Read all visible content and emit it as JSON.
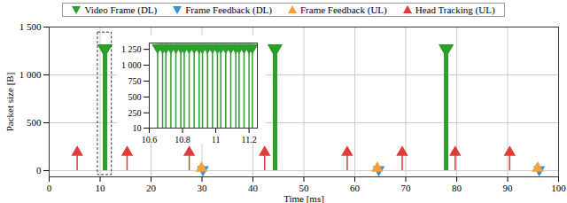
{
  "chart_data": [
    {
      "type": "scatter",
      "x_label": "Time [ms]",
      "y_label": "Packet size [B]",
      "xlim": [
        0,
        100
      ],
      "xticks": [
        0,
        10,
        20,
        30,
        40,
        50,
        60,
        70,
        80,
        90,
        100
      ],
      "ylim": [
        -65,
        1500
      ],
      "yticks": [
        0,
        500,
        {
          "value": 1000,
          "label": "1 000"
        },
        {
          "value": 1500,
          "label": "1 500"
        }
      ],
      "grid": true,
      "legend": "top",
      "series": [
        {
          "name": "Video Frame (DL)",
          "color": "#2ca02c",
          "marker": "triangle-down",
          "x": [
            10.65,
            10.68,
            10.7,
            10.73,
            10.76,
            10.79,
            10.81,
            10.84,
            10.87,
            10.9,
            10.92,
            10.95,
            10.98,
            11.01,
            11.03,
            11.06,
            11.09,
            11.12,
            11.14,
            11.17,
            11.2,
            11.22,
            44.05,
            44.08,
            44.11,
            44.14,
            44.17,
            44.2,
            44.23,
            44.26,
            44.29,
            44.32,
            44.35,
            44.38,
            44.41,
            44.44,
            44.47,
            44.5,
            44.53,
            44.56,
            44.59,
            44.62,
            77.65,
            77.68,
            77.71,
            77.74,
            77.77,
            77.8,
            77.83,
            77.86,
            77.89,
            77.92,
            77.95,
            77.98,
            78.01,
            78.04,
            78.07,
            78.1,
            78.13,
            78.16,
            78.19,
            78.22
          ],
          "values": [
            1280,
            1280,
            1280,
            1280,
            1280,
            1280,
            1280,
            1280,
            1280,
            1280,
            1280,
            1280,
            1280,
            1280,
            1280,
            1280,
            1280,
            1280,
            1280,
            1280,
            1280,
            1280,
            1280,
            1280,
            1280,
            1280,
            1280,
            1280,
            1280,
            1280,
            1280,
            1280,
            1280,
            1280,
            1280,
            1280,
            1280,
            1280,
            1280,
            1280,
            1280,
            1280,
            1280,
            1280,
            1280,
            1280,
            1280,
            1280,
            1280,
            1280,
            1280,
            1280,
            1280,
            1280,
            1280,
            1280,
            1280,
            1280,
            1280,
            1280,
            1280,
            1280
          ]
        },
        {
          "name": "Frame Feedback (DL)",
          "color": "#3a8fd6",
          "marker": "triangle-down",
          "x": [
            30.2,
            64.7,
            96.2
          ],
          "values": [
            10,
            10,
            10
          ]
        },
        {
          "name": "Frame Feedback (UL)",
          "color": "#f5a13a",
          "marker": "triangle-up",
          "x": [
            29.9,
            64.4,
            95.9
          ],
          "values": [
            25,
            25,
            25
          ]
        },
        {
          "name": "Head Tracking (UL)",
          "color": "#e03a3a",
          "marker": "triangle-up",
          "x": [
            5.5,
            15.3,
            27.5,
            42.3,
            58.5,
            69.3,
            79.7,
            90.4
          ],
          "values": [
            190,
            190,
            190,
            190,
            190,
            190,
            190,
            190
          ]
        }
      ]
    },
    {
      "type": "scatter",
      "xlim": [
        10.6,
        11.25
      ],
      "xticks": [
        10.6,
        10.8,
        11,
        11.2
      ],
      "ylim": [
        10,
        1350
      ],
      "yticks": [
        10,
        250,
        500,
        750,
        {
          "value": 1000,
          "label": "1 000"
        },
        {
          "value": 1250,
          "label": "1 250"
        }
      ],
      "grid": false,
      "series": [
        {
          "color": "#2ca02c",
          "marker": "triangle-down",
          "x": [
            10.65,
            10.68,
            10.7,
            10.73,
            10.76,
            10.79,
            10.81,
            10.84,
            10.87,
            10.9,
            10.92,
            10.95,
            10.98,
            11.01,
            11.03,
            11.06,
            11.09,
            11.12,
            11.14,
            11.17,
            11.2,
            11.22
          ],
          "values": [
            1280,
            1280,
            1280,
            1280,
            1280,
            1280,
            1280,
            1280,
            1280,
            1280,
            1280,
            1280,
            1280,
            1280,
            1280,
            1280,
            1280,
            1280,
            1280,
            1280,
            1280,
            1280
          ]
        }
      ]
    }
  ]
}
